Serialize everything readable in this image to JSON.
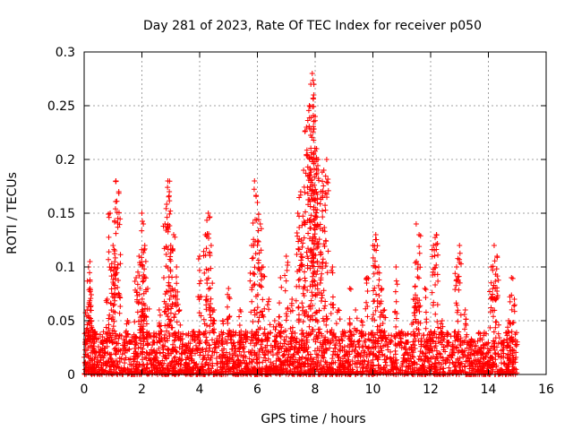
{
  "chart_data": {
    "type": "scatter",
    "title": "Day 281 of 2023, Rate Of TEC Index for receiver p050",
    "xlabel": "GPS time / hours",
    "ylabel": "ROTI / TECUs",
    "xlim": [
      0,
      16
    ],
    "ylim": [
      0,
      0.3
    ],
    "xticks": [
      0,
      2,
      4,
      6,
      8,
      10,
      12,
      14,
      16
    ],
    "xtick_labels": [
      "0",
      "2",
      "4",
      "6",
      "8",
      "10",
      "12",
      "14",
      "16"
    ],
    "yticks": [
      0,
      0.05,
      0.1,
      0.15,
      0.2,
      0.25,
      0.3
    ],
    "ytick_labels": [
      "0",
      "0.05",
      "0.1",
      "0.15",
      "0.2",
      "0.25",
      "0.3"
    ],
    "grid": true,
    "marker": "+",
    "color": "#ff0000",
    "series": [
      {
        "name": "p050",
        "x": [
          0.05,
          0.1,
          0.15,
          0.2,
          0.25,
          0.3,
          0.05,
          0.2,
          0.35,
          0.6,
          0.8,
          0.9,
          1.0,
          1.05,
          1.1,
          1.2,
          1.4,
          1.5,
          1.6,
          1.8,
          1.9,
          2.0,
          2.05,
          2.1,
          2.2,
          2.4,
          2.6,
          2.8,
          2.9,
          2.95,
          3.0,
          3.1,
          3.2,
          3.3,
          3.5,
          3.8,
          4.0,
          4.2,
          4.3,
          4.4,
          4.5,
          4.6,
          4.8,
          5.0,
          5.2,
          5.4,
          5.6,
          5.8,
          5.9,
          6.0,
          6.1,
          6.2,
          6.4,
          6.6,
          6.8,
          7.0,
          7.2,
          7.4,
          7.5,
          7.6,
          7.7,
          7.8,
          7.85,
          7.9,
          7.95,
          8.0,
          8.05,
          8.1,
          8.2,
          8.3,
          8.4,
          8.6,
          8.8,
          9.0,
          9.2,
          9.4,
          9.6,
          9.8,
          10.0,
          10.1,
          10.2,
          10.3,
          10.4,
          10.6,
          10.8,
          11.0,
          11.2,
          11.4,
          11.5,
          11.6,
          11.8,
          12.0,
          12.1,
          12.2,
          12.4,
          12.6,
          12.8,
          12.9,
          13.0,
          13.2,
          13.4,
          13.6,
          13.8,
          14.0,
          14.1,
          14.2,
          14.3,
          14.5,
          14.7,
          14.8,
          14.9
        ],
        "y": [
          0.01,
          0.06,
          0.1,
          0.105,
          0.05,
          0.02,
          0.03,
          0.08,
          0.04,
          0.03,
          0.07,
          0.15,
          0.12,
          0.1,
          0.18,
          0.17,
          0.02,
          0.05,
          0.03,
          0.09,
          0.11,
          0.15,
          0.14,
          0.12,
          0.08,
          0.03,
          0.06,
          0.14,
          0.18,
          0.17,
          0.12,
          0.13,
          0.1,
          0.06,
          0.02,
          0.04,
          0.11,
          0.13,
          0.15,
          0.12,
          0.06,
          0.03,
          0.05,
          0.08,
          0.02,
          0.06,
          0.04,
          0.12,
          0.18,
          0.16,
          0.14,
          0.1,
          0.07,
          0.05,
          0.09,
          0.11,
          0.07,
          0.15,
          0.17,
          0.19,
          0.23,
          0.25,
          0.27,
          0.28,
          0.26,
          0.24,
          0.21,
          0.2,
          0.17,
          0.19,
          0.2,
          0.1,
          0.06,
          0.04,
          0.08,
          0.06,
          0.05,
          0.09,
          0.12,
          0.13,
          0.1,
          0.08,
          0.06,
          0.03,
          0.1,
          0.04,
          0.03,
          0.07,
          0.14,
          0.13,
          0.08,
          0.04,
          0.12,
          0.13,
          0.05,
          0.03,
          0.02,
          0.1,
          0.12,
          0.06,
          0.03,
          0.02,
          0.01,
          0.02,
          0.1,
          0.12,
          0.11,
          0.03,
          0.05,
          0.09,
          0.07
        ]
      }
    ],
    "dense_floor": {
      "note": "dense band of low ROTI values (~0 to 0.04) across 0 to 15 hours",
      "x_range": [
        0,
        15
      ],
      "y_range": [
        0,
        0.04
      ]
    }
  }
}
